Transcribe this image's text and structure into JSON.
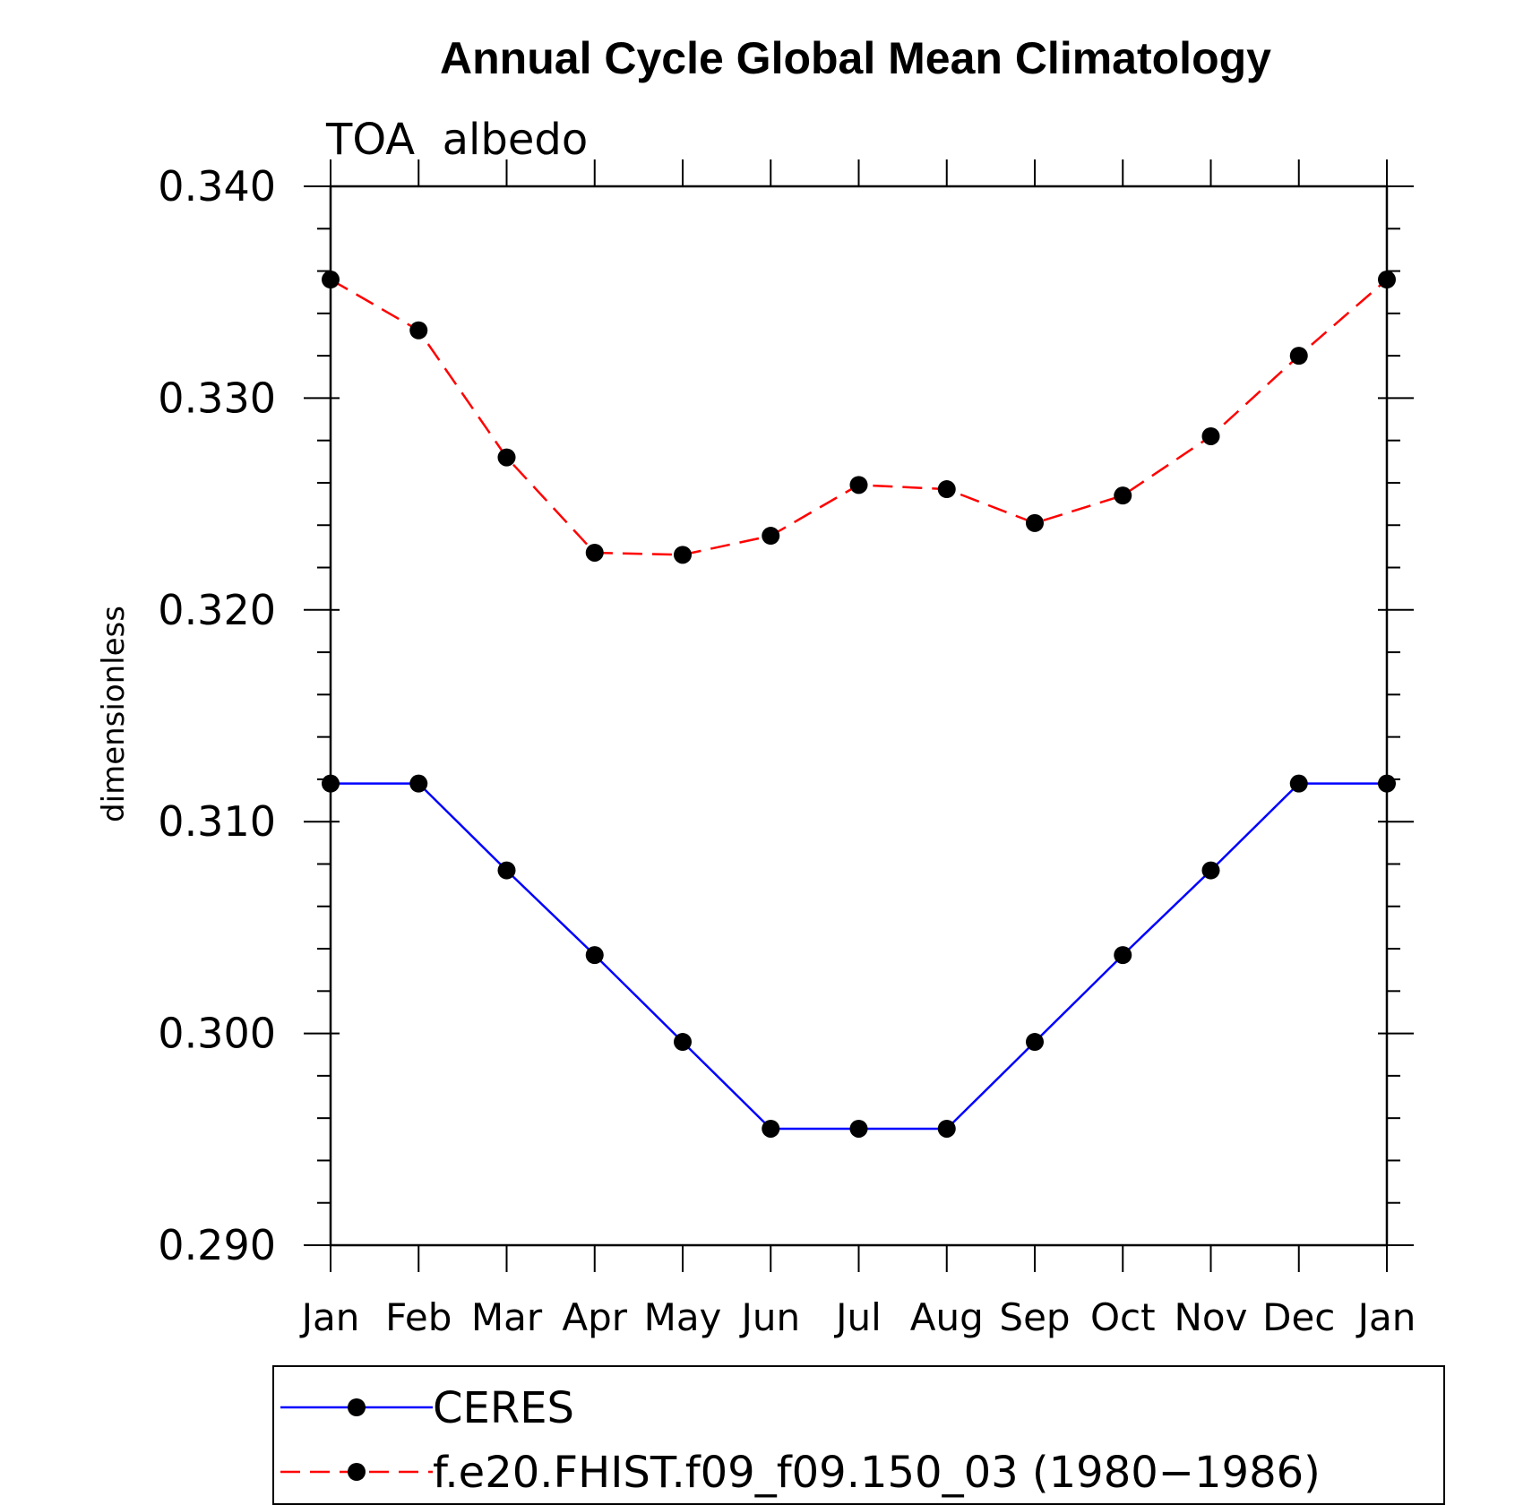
{
  "chart_data": {
    "type": "line",
    "title": "Annual Cycle Global Mean Climatology",
    "subtitle": "TOA  albedo",
    "ylabel": "dimensionless",
    "xlabel": "",
    "categories": [
      "Jan",
      "Feb",
      "Mar",
      "Apr",
      "May",
      "Jun",
      "Jul",
      "Aug",
      "Sep",
      "Oct",
      "Nov",
      "Dec",
      "Jan"
    ],
    "ylim": [
      0.29,
      0.34
    ],
    "yticks": [
      "0.340",
      "0.330",
      "0.320",
      "0.310",
      "0.300",
      "0.290"
    ],
    "series": [
      {
        "name": "CERES",
        "color": "#0000ff",
        "style": "solid",
        "values": [
          0.3118,
          0.3118,
          0.3077,
          0.3037,
          0.2996,
          0.2955,
          0.2955,
          0.2955,
          0.2996,
          0.3037,
          0.3077,
          0.3118,
          0.3118
        ]
      },
      {
        "name": "f.e20.FHIST.f09_f09.150_03 (1980−1986)",
        "color": "#ff0000",
        "style": "dashed",
        "values": [
          0.3356,
          0.3332,
          0.3272,
          0.3227,
          0.3226,
          0.3235,
          0.3259,
          0.3257,
          0.3241,
          0.3254,
          0.3282,
          0.332,
          0.3356
        ]
      }
    ],
    "grid": false,
    "legend_position": "bottom"
  }
}
